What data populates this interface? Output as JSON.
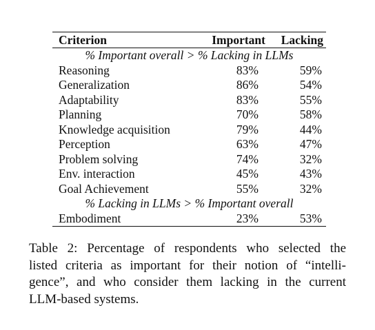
{
  "table": {
    "headers": {
      "criterion": "Criterion",
      "important": "Important",
      "lacking": "Lacking"
    },
    "sections": [
      {
        "title": "% Important overall > % Lacking in LLMs",
        "rows": [
          {
            "criterion": "Reasoning",
            "important": "83%",
            "lacking": "59%"
          },
          {
            "criterion": "Generalization",
            "important": "86%",
            "lacking": "54%"
          },
          {
            "criterion": "Adaptability",
            "important": "83%",
            "lacking": "55%"
          },
          {
            "criterion": "Planning",
            "important": "70%",
            "lacking": "58%"
          },
          {
            "criterion": "Knowledge acquisition",
            "important": "79%",
            "lacking": "44%"
          },
          {
            "criterion": "Perception",
            "important": "63%",
            "lacking": "47%"
          },
          {
            "criterion": "Problem solving",
            "important": "74%",
            "lacking": "32%"
          },
          {
            "criterion": "Env. interaction",
            "important": "45%",
            "lacking": "43%"
          },
          {
            "criterion": "Goal Achievement",
            "important": "55%",
            "lacking": "32%"
          }
        ]
      },
      {
        "title": "% Lacking in LLMs > % Important overall",
        "rows": [
          {
            "criterion": "Embodiment",
            "important": "23%",
            "lacking": "53%"
          }
        ]
      }
    ]
  },
  "caption": {
    "lines": [
      "Table 2: Percentage of respondents who selected the",
      "listed criteria as important for their notion of “intelli-",
      "gence”, and who consider them lacking in the current",
      "LLM-based systems."
    ]
  }
}
